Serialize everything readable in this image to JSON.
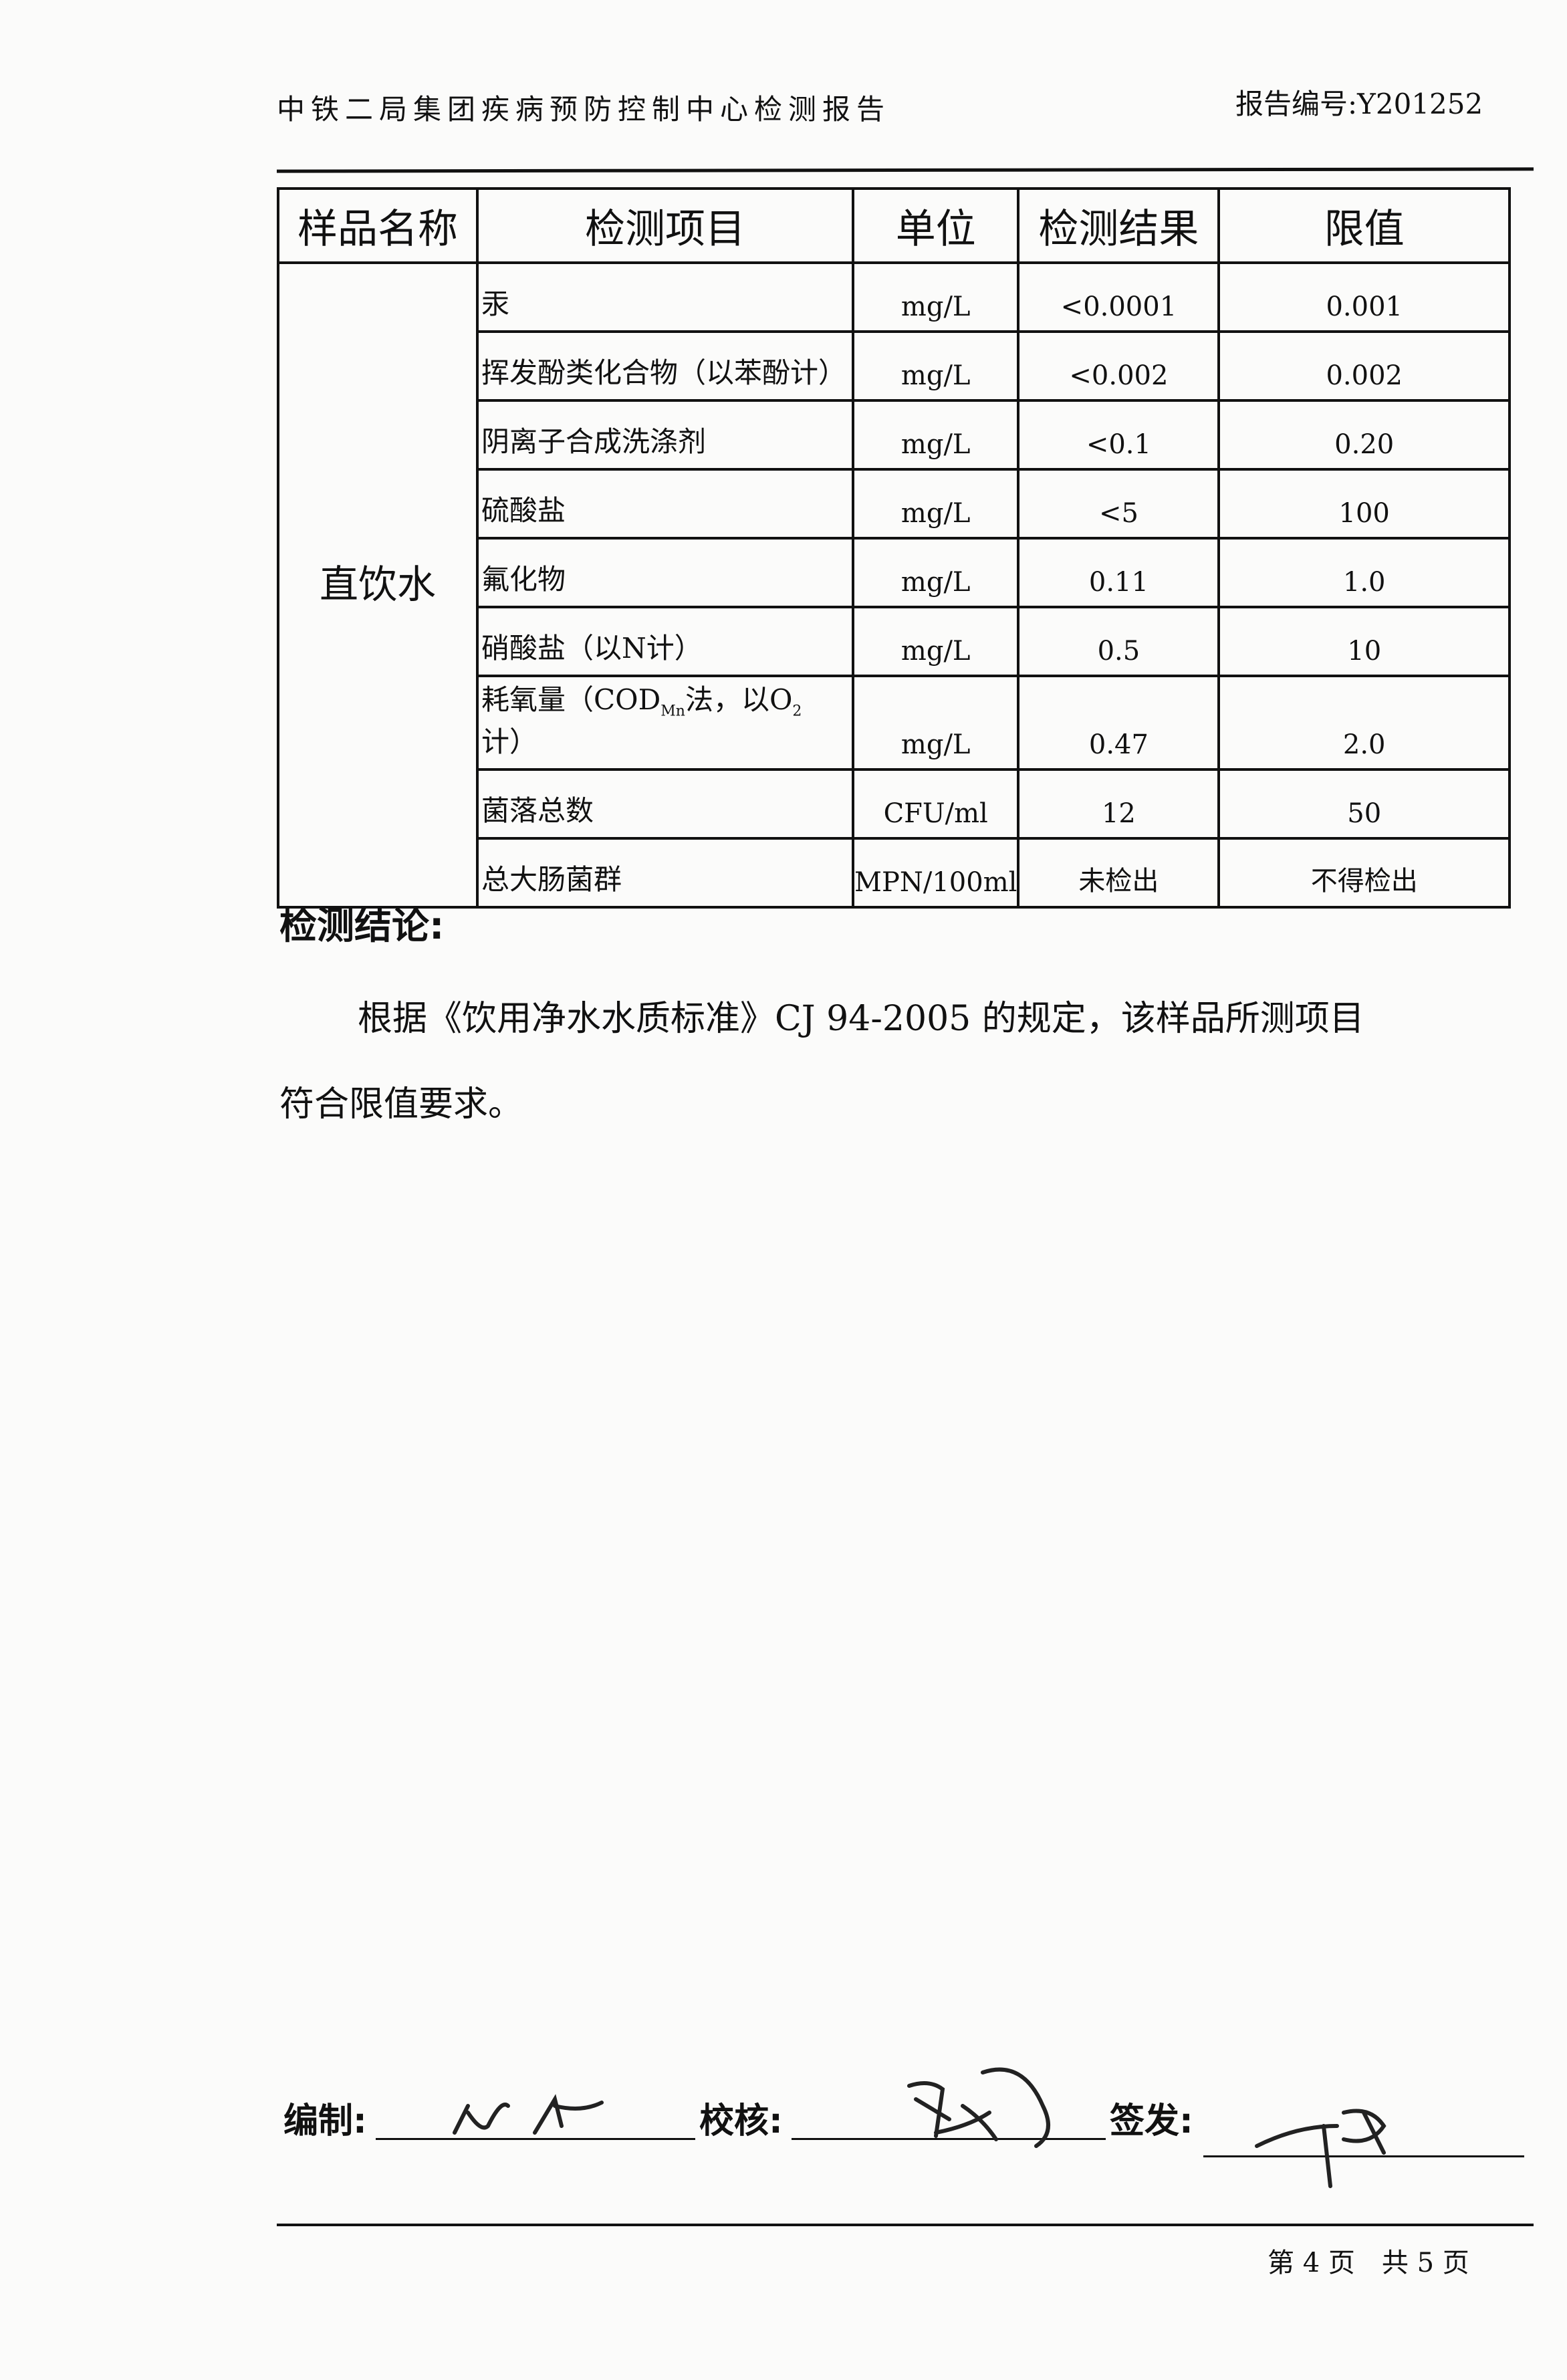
{
  "header": {
    "title": "中铁二局集团疾病预防控制中心检测报告",
    "report_no": "报告编号:Y201252"
  },
  "table": {
    "headers": [
      "样品名称",
      "检测项目",
      "单位",
      "检测结果",
      "限值"
    ],
    "sample": "直饮水",
    "rows": [
      {
        "item": "汞",
        "unit": "mg/L",
        "result": "<0.0001",
        "limit": "0.001"
      },
      {
        "item": "挥发酚类化合物（以苯酚计）",
        "unit": "mg/L",
        "result": "<0.002",
        "limit": "0.002"
      },
      {
        "item": "阴离子合成洗涤剂",
        "unit": "mg/L",
        "result": "<0.1",
        "limit": "0.20"
      },
      {
        "item": "硫酸盐",
        "unit": "mg/L",
        "result": "<5",
        "limit": "100"
      },
      {
        "item": "氟化物",
        "unit": "mg/L",
        "result": "0.11",
        "limit": "1.0"
      },
      {
        "item": "硝酸盐（以N计）",
        "unit": "mg/L",
        "result": "0.5",
        "limit": "10"
      },
      {
        "item": "耗氧量（COD",
        "item_sub": "Mn",
        "item_mid": "法，以O",
        "item_sub2": "2",
        "item_end": "计）",
        "unit": "mg/L",
        "result": "0.47",
        "limit": "2.0"
      },
      {
        "item": "菌落总数",
        "unit": "CFU/ml",
        "result": "12",
        "limit": "50"
      },
      {
        "item": "总大肠菌群",
        "unit": "MPN/100ml",
        "result": "未检出",
        "limit": "不得检出"
      }
    ]
  },
  "conclusion": {
    "heading": "检测结论:",
    "line1": "根据《饮用净水水质标准》CJ 94-2005 的规定，该样品所测项目",
    "line2": "符合限值要求。"
  },
  "signatures": {
    "compiled": "编制:",
    "checked": "校核:",
    "issued": "签发:"
  },
  "footer": {
    "page": "第 4 页　共 5 页"
  }
}
